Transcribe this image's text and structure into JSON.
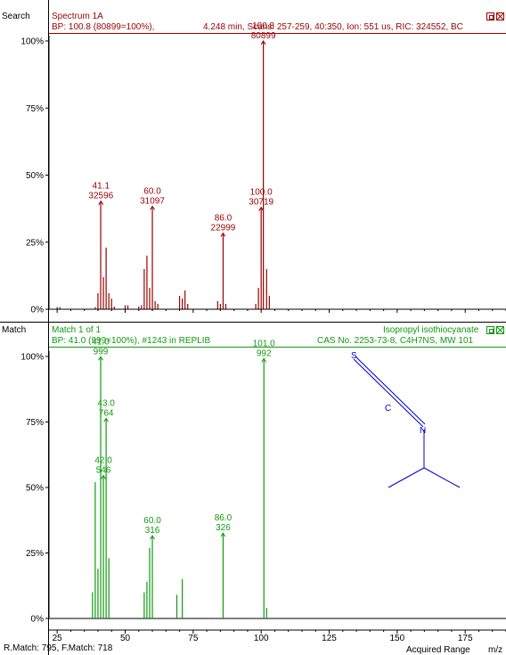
{
  "top_panel": {
    "side_label": "Search",
    "title": "Spectrum 1A",
    "bp_text": "BP: 100.8 (80899=100%),",
    "info_text": "4.248 min, Scans: 257-259, 40:350, Ion: 551 us, RIC: 324552, BC",
    "color": "#990000"
  },
  "bottom_panel": {
    "side_label": "Match",
    "title": "Match 1 of 1",
    "bp_text": "BP: 41.0 (999=100%),  #1243 in REPLIB",
    "compound": "Isopropyl isothiocyanate",
    "cas_text": "CAS No. 2253-73-8, C4H7NS, MW 101",
    "color": "#119911"
  },
  "structure": {
    "atoms": [
      "S",
      "C",
      "N"
    ],
    "color": "#0000cc"
  },
  "footer": {
    "match_text": "R.Match: 795, F.Match: 718",
    "range_text": "Acquired Range",
    "unit": "m/z"
  },
  "chart_data": [
    {
      "type": "bar",
      "name": "Search spectrum",
      "xlim": [
        22,
        190
      ],
      "ylim": [
        0,
        100
      ],
      "yticks": [
        "0%",
        "25%",
        "50%",
        "75%",
        "100%"
      ],
      "xticks": [
        25,
        50,
        75,
        100,
        125,
        150,
        175
      ],
      "x": [
        25,
        26,
        39,
        40,
        41,
        42,
        43,
        44,
        45,
        46,
        50,
        51,
        55,
        56,
        57,
        58,
        59,
        60,
        61,
        62,
        70,
        71,
        72,
        73,
        84,
        85,
        86,
        87,
        98,
        99,
        100,
        100.8,
        102,
        103
      ],
      "values": [
        0.8,
        0.8,
        0.8,
        6,
        40.3,
        12,
        23,
        6,
        4,
        1,
        1.5,
        1.5,
        1,
        1.5,
        15,
        20,
        8,
        38.4,
        3,
        2,
        5,
        4,
        7,
        2,
        3,
        2,
        28.4,
        2,
        2,
        8,
        38,
        100,
        15,
        5
      ],
      "labels": [
        {
          "mz": "41.1",
          "intensity": "32596",
          "x": 41.1,
          "y": 40.3
        },
        {
          "mz": "60.0",
          "intensity": "31097",
          "x": 60.0,
          "y": 38.4
        },
        {
          "mz": "86.0",
          "intensity": "22999",
          "x": 86.0,
          "y": 28.4
        },
        {
          "mz": "100.0",
          "intensity": "30719",
          "x": 100.0,
          "y": 38.0
        },
        {
          "mz": "100.8",
          "intensity": "80899",
          "x": 100.8,
          "y": 100
        }
      ]
    },
    {
      "type": "bar",
      "name": "Library match spectrum",
      "xlim": [
        22,
        190
      ],
      "ylim": [
        0,
        100
      ],
      "yticks": [
        "0%",
        "25%",
        "50%",
        "75%",
        "100%"
      ],
      "xticks": [
        25,
        50,
        75,
        100,
        125,
        150,
        175
      ],
      "x": [
        38,
        39,
        40,
        41,
        42,
        43,
        44,
        57,
        58,
        59,
        60,
        69,
        71,
        86,
        101,
        102
      ],
      "values": [
        10,
        52,
        19,
        99.9,
        54.6,
        76.4,
        23,
        10,
        14,
        27,
        31.6,
        9,
        15,
        32.6,
        99.2,
        4
      ],
      "labels": [
        {
          "mz": "41.0",
          "intensity": "999",
          "x": 41.0,
          "y": 99.9
        },
        {
          "mz": "43.0",
          "intensity": "764",
          "x": 43.0,
          "y": 76.4
        },
        {
          "mz": "42.0",
          "intensity": "546",
          "x": 42.0,
          "y": 54.6
        },
        {
          "mz": "60.0",
          "intensity": "316",
          "x": 60.0,
          "y": 31.6
        },
        {
          "mz": "86.0",
          "intensity": "326",
          "x": 86.0,
          "y": 32.6
        },
        {
          "mz": "101.0",
          "intensity": "992",
          "x": 101.0,
          "y": 99.2
        }
      ]
    }
  ]
}
